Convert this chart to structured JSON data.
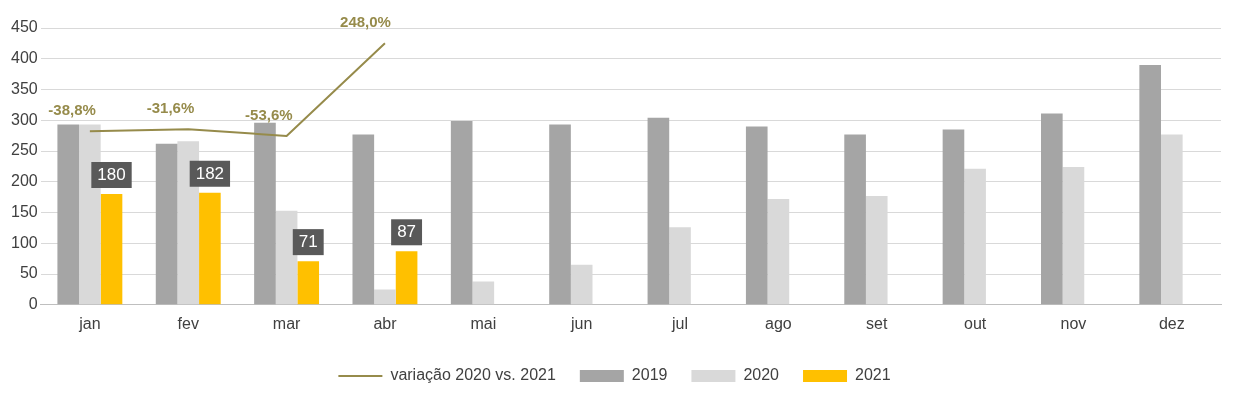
{
  "chart_data": {
    "type": "bar",
    "categories": [
      "jan",
      "fev",
      "mar",
      "abr",
      "mai",
      "jun",
      "jul",
      "ago",
      "set",
      "out",
      "nov",
      "dez"
    ],
    "series": [
      {
        "name": "2019",
        "color": "#a5a5a5",
        "values": [
          293,
          262,
          296,
          277,
          299,
          293,
          304,
          290,
          277,
          285,
          311,
          390
        ]
      },
      {
        "name": "2020",
        "color": "#d9d9d9",
        "values": [
          293,
          266,
          153,
          25,
          38,
          65,
          126,
          172,
          177,
          221,
          224,
          277
        ]
      },
      {
        "name": "2021",
        "color": "#ffc000",
        "values": [
          180,
          182,
          71,
          87,
          null,
          null,
          null,
          null,
          null,
          null,
          null,
          null
        ],
        "value_labels": [
          "180",
          "182",
          "71",
          "87",
          null,
          null,
          null,
          null,
          null,
          null,
          null,
          null
        ]
      },
      {
        "name": "variação 2020 vs. 2021",
        "type": "line",
        "axis": "y2",
        "color": "#968b4b",
        "values": [
          -38.8,
          -31.6,
          -53.6,
          248.0,
          null,
          null,
          null,
          null,
          null,
          null,
          null,
          null
        ],
        "value_labels": [
          "-38,8%",
          "-31,6%",
          "-53,6%",
          "248,0%",
          null,
          null,
          null,
          null,
          null,
          null,
          null,
          null
        ]
      }
    ],
    "ylim": [
      0,
      450
    ],
    "yticks": [
      0,
      50,
      100,
      150,
      200,
      250,
      300,
      350,
      400,
      450
    ],
    "y2lim": [
      -604,
      298
    ],
    "grid": "y",
    "legend": "bottom",
    "marker": "none"
  }
}
